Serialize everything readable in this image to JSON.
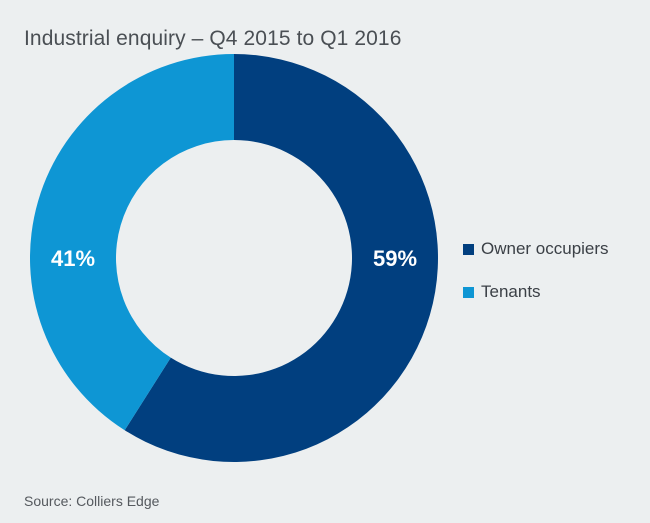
{
  "title": "Industrial enquiry – Q4 2015 to Q1 2016",
  "source": "Source: Colliers Edge",
  "colors": {
    "owner": "#013f7f",
    "tenants": "#0e96d4",
    "background": "#eceff0"
  },
  "chart_data": {
    "type": "pie",
    "donut": true,
    "title": "Industrial enquiry – Q4 2015 to Q1 2016",
    "legend_position": "right",
    "slices": [
      {
        "label": "Owner occupiers",
        "value": 59,
        "data_label": "59%",
        "color": "#013f7f"
      },
      {
        "label": "Tenants",
        "value": 41,
        "data_label": "41%",
        "color": "#0e96d4"
      }
    ]
  }
}
